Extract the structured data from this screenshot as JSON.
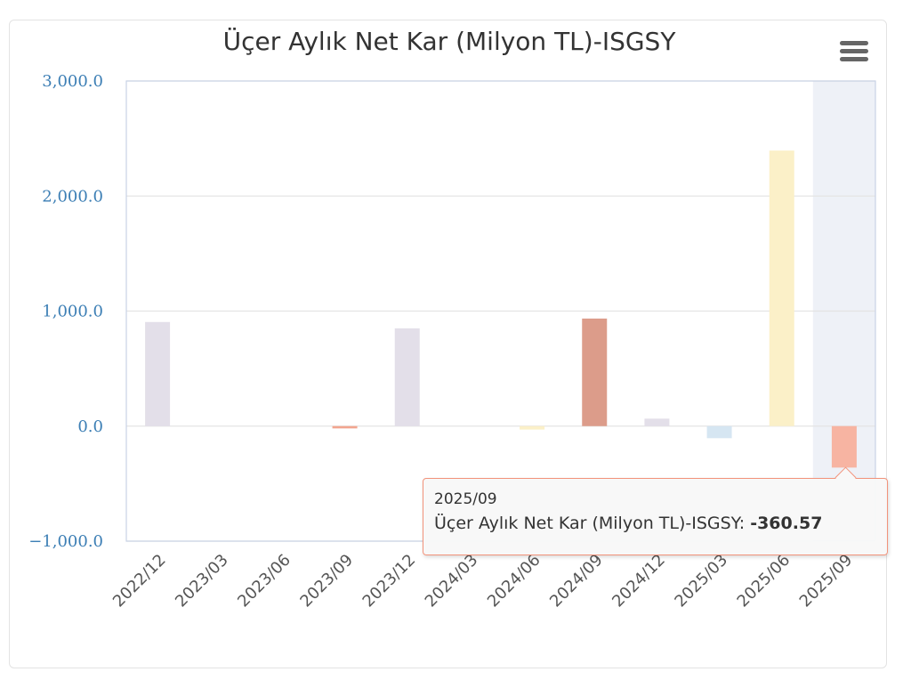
{
  "chart_data": {
    "type": "bar",
    "title": "Üçer Aylık Net Kar (Milyon TL)-ISGSY",
    "categories": [
      "2022/12",
      "2023/03",
      "2023/06",
      "2023/09",
      "2023/12",
      "2024/03",
      "2024/06",
      "2024/09",
      "2024/12",
      "2025/03",
      "2025/06",
      "2025/09"
    ],
    "series": [
      {
        "name": "Üçer Aylık Net Kar (Milyon TL)-ISGSY",
        "values": [
          905,
          0,
          0,
          -20,
          850,
          0,
          -30,
          935,
          65,
          -105,
          2395,
          -360.57
        ]
      }
    ],
    "bar_colors": [
      "#e3dfe9",
      "#e3dfe9",
      "#e3dfe9",
      "#f2a58f",
      "#e3dfe9",
      "#e3dfe9",
      "#fbf0c8",
      "#dc9c8a",
      "#e3dfe9",
      "#d6e6f2",
      "#fbf0c8",
      "#f7b4a2"
    ],
    "y_ticks": [
      "3,000.0",
      "2,000.0",
      "1,000.0",
      "0.0",
      "−1,000.0"
    ],
    "ylim": [
      -1000,
      3000
    ],
    "grid": true,
    "highlighted_category": "2025/09"
  },
  "tooltip": {
    "header": "2025/09",
    "series_label": "Üçer Aylık Net Kar (Milyon TL)-ISGSY: ",
    "value": "-360.57"
  },
  "menu": {
    "icon": "hamburger-menu-icon"
  }
}
